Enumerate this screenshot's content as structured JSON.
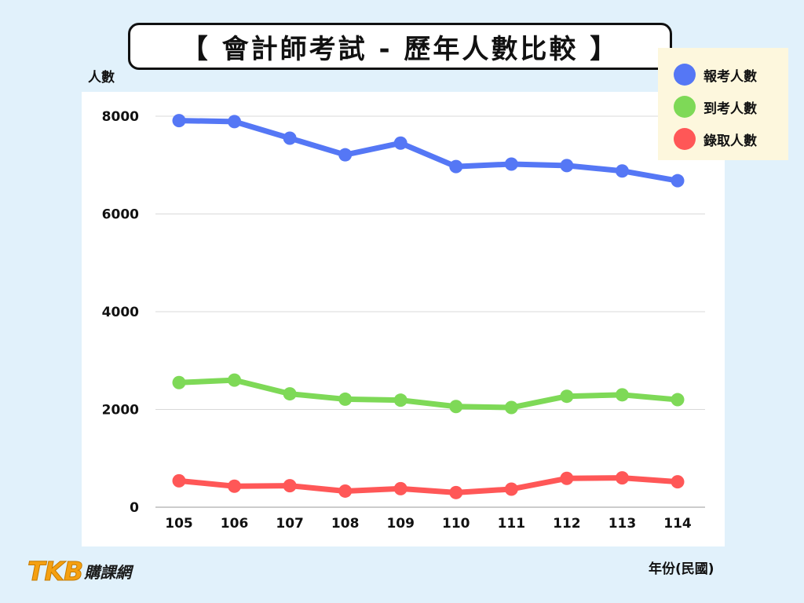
{
  "title": "【 會計師考試 - 歷年人數比較 】",
  "logo": {
    "mark": "TKB",
    "text": "購課網"
  },
  "colors": {
    "background": "#e1f1fb",
    "plot": "#ffffff",
    "legend_bg": "#fdf7dd",
    "grid": "#d9d9d9"
  },
  "chart_data": {
    "type": "line",
    "title": "【 會計師考試 - 歷年人數比較 】",
    "ylabel": "人數",
    "xlabel": "年份(民國)",
    "categories": [
      "105",
      "106",
      "107",
      "108",
      "109",
      "110",
      "111",
      "112",
      "113",
      "114"
    ],
    "ylim": [
      0,
      8000
    ],
    "yticks": [
      0,
      2000,
      4000,
      6000,
      8000
    ],
    "grid": true,
    "legend_position": "top-right",
    "series": [
      {
        "name": "報考人數",
        "color": "#5577f5",
        "values": [
          7910,
          7890,
          7550,
          7210,
          7450,
          6970,
          7020,
          6990,
          6880,
          6680
        ]
      },
      {
        "name": "到考人數",
        "color": "#7ed957",
        "values": [
          2550,
          2600,
          2320,
          2210,
          2190,
          2060,
          2040,
          2270,
          2300,
          2200
        ]
      },
      {
        "name": "錄取人數",
        "color": "#ff5757",
        "values": [
          540,
          430,
          440,
          330,
          380,
          300,
          370,
          590,
          600,
          520
        ]
      }
    ]
  }
}
